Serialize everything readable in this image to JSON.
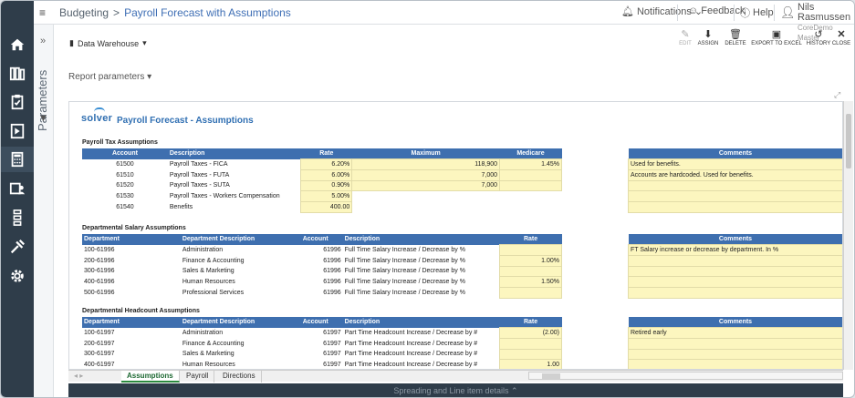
{
  "topbar": {
    "breadcrumb_root": "Budgeting",
    "breadcrumb_sep": ">",
    "breadcrumb_current": "Payroll Forecast with Assumptions",
    "notifications": "Notifications",
    "feedback": "Feedback",
    "help": "Help",
    "user_name": "Nils Rasmussen",
    "user_company": "CoreDemo Master"
  },
  "params": {
    "label": "Parameters",
    "collapse": "»"
  },
  "toolbar": {
    "data_source": "Data Warehouse",
    "edit": "EDIT",
    "assign": "ASSIGN",
    "delete": "DELETE",
    "export": "EXPORT TO EXCEL",
    "history": "HISTORY",
    "close": "CLOSE"
  },
  "report_params": "Report parameters",
  "report": {
    "logo": "solver",
    "title": "Payroll Forecast - Assumptions"
  },
  "tax": {
    "section": "Payroll Tax Assumptions",
    "headers": {
      "account": "Account",
      "description": "Description",
      "rate": "Rate",
      "maximum": "Maximum",
      "medicare": "Medicare",
      "comments": "Comments"
    },
    "rows": [
      {
        "account": "61500",
        "description": "Payroll Taxes - FICA",
        "rate": "6.20%",
        "maximum": "118,900",
        "medicare": "1.45%",
        "comment": "Used for benefits."
      },
      {
        "account": "61510",
        "description": "Payroll Taxes - FUTA",
        "rate": "6.00%",
        "maximum": "7,000",
        "medicare": "",
        "comment": "Accounts are hardcoded. Used for benefits."
      },
      {
        "account": "61520",
        "description": "Payroll Taxes - SUTA",
        "rate": "0.90%",
        "maximum": "7,000",
        "medicare": "",
        "comment": ""
      },
      {
        "account": "61530",
        "description": "Payroll Taxes - Workers Compensation",
        "rate": "5.00%",
        "maximum": "",
        "medicare": "",
        "comment": ""
      },
      {
        "account": "61540",
        "description": "Benefits",
        "rate": "400.00",
        "maximum": "",
        "medicare": "",
        "comment": ""
      }
    ]
  },
  "salary": {
    "section": "Departmental Salary Assumptions",
    "headers": {
      "department": "Department",
      "dept_desc": "Department Description",
      "account": "Account",
      "description": "Description",
      "rate": "Rate",
      "comments": "Comments"
    },
    "rows": [
      {
        "department": "100-61996",
        "dept_desc": "Administration",
        "account": "61996",
        "description": "Full Time Salary Increase / Decrease by %",
        "rate": "",
        "comment": "FT Salary increase or decrease by department. In %"
      },
      {
        "department": "200-61996",
        "dept_desc": "Finance & Accounting",
        "account": "61996",
        "description": "Full Time Salary Increase / Decrease by %",
        "rate": "1.00%",
        "comment": ""
      },
      {
        "department": "300-61996",
        "dept_desc": "Sales & Marketing",
        "account": "61996",
        "description": "Full Time Salary Increase / Decrease by %",
        "rate": "",
        "comment": ""
      },
      {
        "department": "400-61996",
        "dept_desc": "Human Resources",
        "account": "61996",
        "description": "Full Time Salary Increase / Decrease by %",
        "rate": "1.50%",
        "comment": ""
      },
      {
        "department": "500-61996",
        "dept_desc": "Professional Services",
        "account": "61996",
        "description": "Full Time Salary Increase / Decrease by %",
        "rate": "",
        "comment": ""
      }
    ]
  },
  "headcount": {
    "section": "Departmental Headcount Assumptions",
    "headers": {
      "department": "Department",
      "dept_desc": "Department Description",
      "account": "Account",
      "description": "Description",
      "rate": "Rate",
      "comments": "Comments"
    },
    "rows": [
      {
        "department": "100-61997",
        "dept_desc": "Administration",
        "account": "61997",
        "description": "Part Time Headcount Increase / Decrease by #",
        "rate": "(2.00)",
        "comment": "Retired early"
      },
      {
        "department": "200-61997",
        "dept_desc": "Finance & Accounting",
        "account": "61997",
        "description": "Part Time Headcount Increase / Decrease by #",
        "rate": "",
        "comment": ""
      },
      {
        "department": "300-61997",
        "dept_desc": "Sales & Marketing",
        "account": "61997",
        "description": "Part Time Headcount Increase / Decrease by #",
        "rate": "",
        "comment": ""
      },
      {
        "department": "400-61997",
        "dept_desc": "Human Resources",
        "account": "61997",
        "description": "Part Time Headcount Increase / Decrease by #",
        "rate": "1.00",
        "comment": ""
      }
    ]
  },
  "sheet_tabs": [
    "Assumptions",
    "Payroll",
    "Directions"
  ],
  "bottom_bar": "Spreading and Line item details"
}
